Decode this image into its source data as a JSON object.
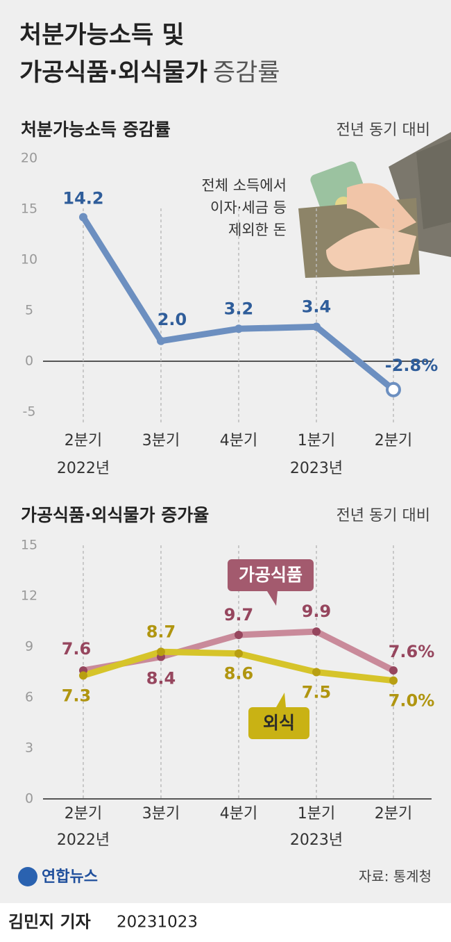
{
  "header": {
    "title_line1": "처분가능소득 및",
    "title_line2": "가공식품·외식물가",
    "title_suffix": "증감률"
  },
  "chart_data": [
    {
      "type": "line",
      "title": "처분가능소득 증감률",
      "note": "전년 동기 대비",
      "annotation": [
        "전체 소득에서",
        "이자·세금 등",
        "제외한 돈"
      ],
      "categories": [
        "2분기",
        "3분기",
        "4분기",
        "1분기",
        "2분기"
      ],
      "year_labels": [
        "2022년",
        null,
        null,
        "2023년",
        null
      ],
      "values": [
        14.2,
        2.0,
        3.2,
        3.4,
        -2.8
      ],
      "value_labels": [
        "14.2",
        "2.0",
        "3.2",
        "3.4",
        "-2.8%"
      ],
      "color": "#6c8fc0",
      "label_color": "#2f5d9a",
      "ylim": [
        -5,
        20
      ],
      "yticks": [
        -5,
        0,
        5,
        10,
        15,
        20
      ]
    },
    {
      "type": "line",
      "title": "가공식품·외식물가 증가율",
      "note": "전년 동기 대비",
      "categories": [
        "2분기",
        "3분기",
        "4분기",
        "1분기",
        "2분기"
      ],
      "year_labels": [
        "2022년",
        null,
        null,
        "2023년",
        null
      ],
      "series": [
        {
          "name": "가공식품",
          "color": "#c98a9a",
          "dot_color": "#96465e",
          "label_color": "#96465e",
          "values": [
            7.6,
            8.4,
            9.7,
            9.9,
            7.6
          ],
          "value_labels": [
            "7.6",
            "8.4",
            "9.7",
            "9.9",
            "7.6%"
          ]
        },
        {
          "name": "외식",
          "color": "#d6c42a",
          "dot_color": "#b89f12",
          "label_color": "#b09510",
          "values": [
            7.3,
            8.7,
            8.6,
            7.5,
            7.0
          ],
          "value_labels": [
            "7.3",
            "8.7",
            "8.6",
            "7.5",
            "7.0%"
          ]
        }
      ],
      "ylim": [
        0,
        15
      ],
      "yticks": [
        0,
        3,
        6,
        9,
        12,
        15
      ]
    }
  ],
  "footer": {
    "logo": "연합뉴스",
    "source": "자료: 통계청",
    "byline": "김민지 기자",
    "date": "20231023"
  }
}
